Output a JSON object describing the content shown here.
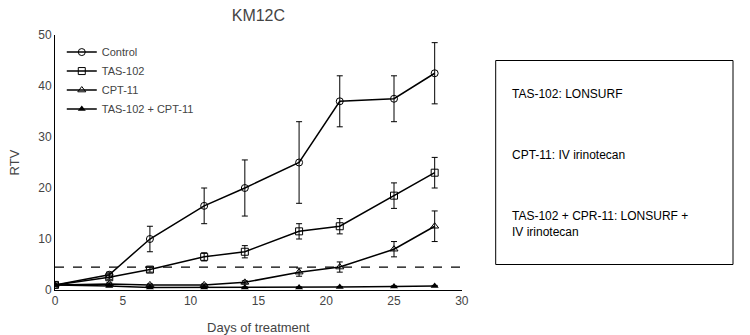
{
  "chart_data": {
    "type": "line",
    "title": "KM12C",
    "xlabel": "Days of treatment",
    "ylabel": "RTV",
    "xlim": [
      0,
      30
    ],
    "ylim": [
      0,
      50
    ],
    "xticks": [
      0,
      5,
      10,
      15,
      20,
      25,
      30
    ],
    "yticks": [
      0,
      10,
      20,
      30,
      40,
      50
    ],
    "grid": false,
    "legend": "upper left",
    "hline": 4.5,
    "series": [
      {
        "name": "Control",
        "color": "black",
        "marker": "circle-open",
        "x": [
          0,
          4,
          7,
          11,
          14,
          18,
          21,
          25,
          28
        ],
        "values": [
          1.0,
          3.0,
          10.0,
          16.5,
          20.0,
          25.0,
          37.0,
          37.5,
          42.5
        ],
        "yerr": [
          0.1,
          0.5,
          2.5,
          3.5,
          5.5,
          8.0,
          5.0,
          4.5,
          6.0
        ]
      },
      {
        "name": "TAS-102",
        "color": "black",
        "marker": "square-open",
        "x": [
          0,
          4,
          7,
          11,
          14,
          18,
          21,
          25,
          28
        ],
        "values": [
          1.0,
          2.5,
          4.0,
          6.5,
          7.5,
          11.5,
          12.5,
          18.5,
          23.0
        ],
        "yerr": [
          0.1,
          0.4,
          0.5,
          0.8,
          1.2,
          1.5,
          1.5,
          2.5,
          3.0
        ]
      },
      {
        "name": "CPT-11",
        "color": "black",
        "marker": "triangle-up-open",
        "x": [
          0,
          4,
          7,
          11,
          14,
          18,
          21,
          25,
          28
        ],
        "values": [
          1.0,
          1.2,
          1.0,
          1.0,
          1.5,
          3.5,
          4.5,
          8.0,
          12.5
        ],
        "yerr": [
          0.1,
          0.2,
          0.2,
          0.2,
          0.3,
          0.8,
          1.0,
          1.5,
          3.0
        ]
      },
      {
        "name": "TAS-102 + CPT-11",
        "color": "black",
        "marker": "triangle-up",
        "x": [
          0,
          4,
          7,
          11,
          14,
          18,
          21,
          25,
          28
        ],
        "values": [
          1.0,
          0.8,
          0.5,
          0.5,
          0.5,
          0.5,
          0.6,
          0.7,
          0.8
        ],
        "yerr": [
          0.1,
          0.1,
          0.1,
          0.1,
          0.1,
          0.1,
          0.1,
          0.1,
          0.1
        ]
      }
    ],
    "annotations": [
      "TAS-102: LONSURF",
      "CPT-11: IV irinotecan",
      "TAS-102 + CPR-11: LONSURF +\nIV irinotecan"
    ]
  }
}
